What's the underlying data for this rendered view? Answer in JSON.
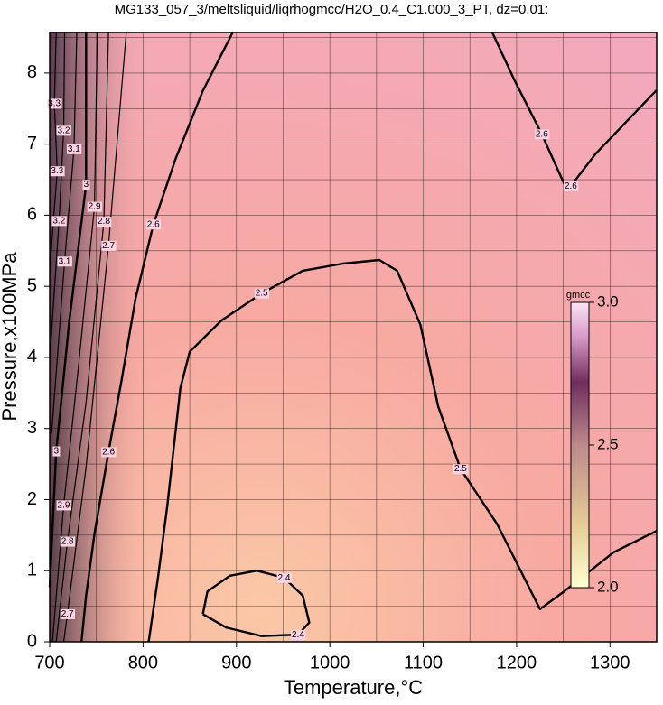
{
  "chart_data": {
    "type": "contour",
    "title": "MG133_057_3/meltsliquid/liqrhogmcc/H2O_0.4_C1.000_3_PT, dz=0.01:",
    "x_label": "Temperature,°C",
    "y_label": "Pressure,x100MPa",
    "xlim": [
      700,
      1350
    ],
    "ylim": [
      0,
      8.57
    ],
    "xticks": [
      700,
      800,
      900,
      1000,
      1100,
      1200,
      1300
    ],
    "yticks": [
      0,
      1,
      2,
      3,
      4,
      5,
      6,
      7,
      8
    ],
    "xgrid": [
      750,
      800,
      850,
      900,
      950,
      1000,
      1050,
      1100,
      1150,
      1200,
      1250,
      1300
    ],
    "ygrid": [
      0.5,
      1,
      1.5,
      2,
      2.5,
      3,
      3.5,
      4,
      4.5,
      5,
      5.5,
      6,
      6.5,
      7,
      7.5,
      8,
      8.5
    ],
    "grid": true,
    "line_color": "#000000",
    "contours": [
      {
        "level": 2.4,
        "bold": true,
        "x": [
          864,
          869,
          893,
          922,
          951,
          971,
          978,
          966,
          927,
          889,
          864
        ],
        "y": [
          0.39,
          0.71,
          0.93,
          1.0,
          0.9,
          0.65,
          0.27,
          0.1,
          0.08,
          0.2,
          0.39
        ]
      },
      {
        "level": 2.5,
        "bold": true,
        "x": [
          806,
          816,
          826,
          840,
          850,
          884,
          927,
          971,
          1014,
          1053,
          1072,
          1097,
          1116,
          1140,
          1179,
          1225,
          1251,
          1304,
          1350
        ],
        "y": [
          0,
          0.9,
          1.92,
          3.57,
          4.08,
          4.52,
          4.9,
          5.22,
          5.32,
          5.37,
          5.22,
          4.46,
          3.31,
          2.43,
          1.66,
          0.46,
          0.71,
          1.26,
          1.56
        ]
      },
      {
        "level": 2.6,
        "bold": true,
        "x": [
          896,
          864,
          835,
          811,
          792,
          777,
          763,
          748,
          739,
          734
        ],
        "y": [
          8.57,
          7.75,
          6.8,
          5.87,
          4.83,
          3.68,
          2.67,
          1.52,
          0.65,
          0
        ]
      },
      {
        "level": 2.6,
        "bold": true,
        "x": [
          1174,
          1198,
          1227,
          1251,
          1258,
          1285,
          1350
        ],
        "y": [
          8.57,
          7.89,
          7.14,
          6.44,
          6.41,
          6.87,
          7.76
        ]
      },
      {
        "level": 2.7,
        "bold": false,
        "x": [
          782,
          763,
          739,
          719,
          715
        ],
        "y": [
          8.57,
          5.57,
          2.46,
          0.39,
          0
        ]
      },
      {
        "level": 2.8,
        "bold": false,
        "x": [
          763,
          758,
          739,
          719,
          707
        ],
        "y": [
          8.57,
          5.91,
          3.37,
          1.41,
          0
        ]
      },
      {
        "level": 2.9,
        "bold": false,
        "x": [
          751,
          748,
          731,
          715,
          703
        ],
        "y": [
          8.57,
          6.12,
          3.89,
          1.92,
          0
        ]
      },
      {
        "level": 3.0,
        "bold": true,
        "x": [
          739,
          739,
          721,
          707,
          700
        ],
        "y": [
          8.57,
          6.43,
          4.51,
          2.68,
          0.77
        ]
      },
      {
        "level": 3.1,
        "bold": false,
        "x": [
          729,
          726,
          716,
          702
        ],
        "y": [
          8.57,
          6.93,
          5.35,
          2.93
        ]
      },
      {
        "level": 3.2,
        "bold": false,
        "x": [
          716,
          715,
          710,
          700
        ],
        "y": [
          8.57,
          7.19,
          5.92,
          3.95
        ]
      },
      {
        "level": 3.3,
        "bold": false,
        "x": [
          707,
          705,
          708,
          700
        ],
        "y": [
          8.57,
          7.57,
          6.62,
          5.22
        ]
      }
    ],
    "colorbar": {
      "label": "gmcc",
      "lim": [
        2,
        3
      ],
      "ticks": [
        {
          "value": 2,
          "label": "2.0"
        },
        {
          "value": 2.5,
          "label": "2.5"
        },
        {
          "value": 3,
          "label": "3.0"
        }
      ]
    }
  }
}
